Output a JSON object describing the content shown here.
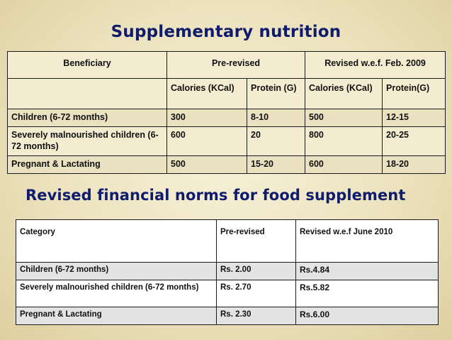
{
  "slide": {
    "title": "Supplementary nutrition",
    "subtitle": "Revised financial norms for food supplement"
  },
  "table1": {
    "headers": {
      "beneficiary": "Beneficiary",
      "pre_revised": "Pre-revised",
      "revised": "Revised w.e.f. Feb. 2009"
    },
    "subheaders": {
      "pre_calories": "Calories (KCal)",
      "pre_protein": "Protein (G)",
      "rev_calories": "Calories (KCal)",
      "rev_protein": "Protein(G)"
    },
    "rows": [
      {
        "beneficiary": "Children (6-72 months)",
        "pre_calories": "300",
        "pre_protein": "8-10",
        "rev_calories": "500",
        "rev_protein": "12-15"
      },
      {
        "beneficiary": "Severely malnourished children (6-72 months)",
        "pre_calories": "600",
        "pre_protein": "20",
        "rev_calories": "800",
        "rev_protein": "20-25"
      },
      {
        "beneficiary": "Pregnant & Lactating",
        "pre_calories": "500",
        "pre_protein": "15-20",
        "rev_calories": "600",
        "rev_protein": "18-20"
      }
    ]
  },
  "table2": {
    "headers": {
      "category": "Category",
      "pre_revised": "Pre-revised",
      "revised": "Revised w.e.f June 2010"
    },
    "rows": [
      {
        "category": "Children (6-72 months)",
        "pre_revised": "Rs. 2.00",
        "revised": "Rs.4.84"
      },
      {
        "category": "Severely malnourished children (6-72 months)",
        "pre_revised": "Rs. 2.70",
        "revised": "Rs.5.82"
      },
      {
        "category": "Pregnant & Lactating",
        "pre_revised": "Rs. 2.30",
        "revised": "Rs.6.00"
      }
    ]
  }
}
